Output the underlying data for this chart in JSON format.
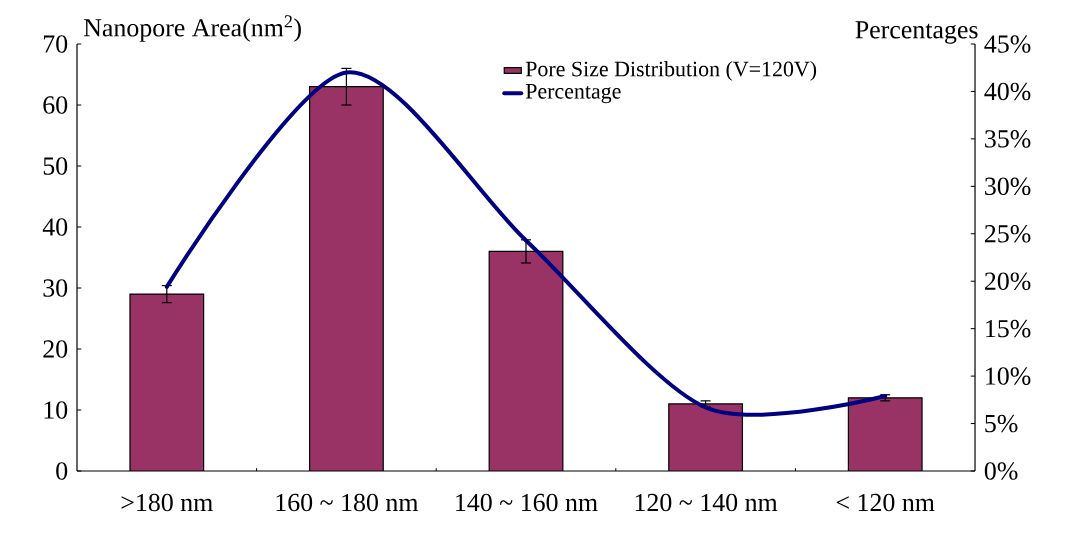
{
  "chart_data": {
    "type": "bar",
    "ylabel": "Nanopore Area(nm$^{2}$)",
    "y2label": "Percentages",
    "categories": [
      ">180 nm",
      "160 ~ 180 nm",
      "140 ~ 160 nm",
      "120 ~ 140 nm",
      "< 120 nm"
    ],
    "series": [
      {
        "name": "Pore Size Distribution (V=120V)",
        "color": "#993366",
        "values": [
          29,
          63,
          36,
          11,
          12
        ],
        "errors": [
          1.4,
          3,
          1.9,
          0.5,
          0.5
        ]
      },
      {
        "name": "Percentage",
        "type": "line",
        "axis": "y2",
        "color": "#000080",
        "values": [
          19.4,
          42,
          24.3,
          6.7,
          7.9
        ]
      }
    ],
    "ylim": [
      0,
      70
    ],
    "yticks": [
      0,
      10,
      20,
      30,
      40,
      50,
      60,
      70
    ],
    "y2lim": [
      0,
      45
    ],
    "y2ticks": [
      {
        "value": 0,
        "label": "0%"
      },
      {
        "value": 5,
        "label": "5%"
      },
      {
        "value": 10,
        "label": "10%"
      },
      {
        "value": 15,
        "label": "15%"
      },
      {
        "value": 20,
        "label": "20%"
      },
      {
        "value": 25,
        "label": "25%"
      },
      {
        "value": 30,
        "label": "30%"
      },
      {
        "value": 35,
        "label": "35%"
      },
      {
        "value": 40,
        "label": "40%"
      },
      {
        "value": 45,
        "label": "45%"
      }
    ],
    "legend": "top right"
  }
}
